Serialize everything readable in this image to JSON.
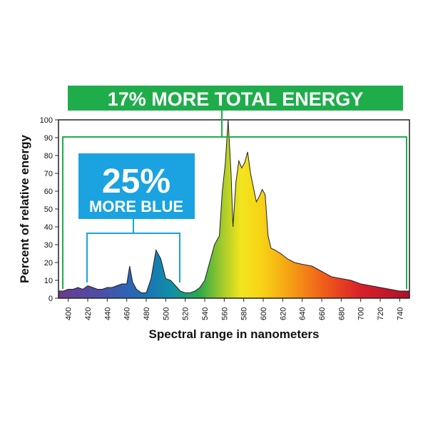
{
  "chart_data": {
    "type": "area",
    "title": "",
    "xlabel": "Spectral range in nanometers",
    "ylabel": "Percent of relative energy",
    "xlim": [
      390,
      750
    ],
    "ylim": [
      0,
      100
    ],
    "x_ticks": [
      "400",
      "420",
      "440",
      "460",
      "480",
      "500",
      "520",
      "540",
      "560",
      "580",
      "600",
      "620",
      "640",
      "660",
      "680",
      "700",
      "720",
      "740"
    ],
    "y_ticks": [
      "0",
      "10",
      "20",
      "30",
      "40",
      "50",
      "60",
      "70",
      "80",
      "90",
      "100"
    ],
    "grid": false,
    "fill": "spectral gradient (violet to red)",
    "series": [
      {
        "x": [
          390,
          395,
          400,
          405,
          410,
          415,
          420,
          425,
          430,
          435,
          440,
          445,
          450,
          455,
          460,
          463,
          466,
          470,
          475,
          480,
          485,
          490,
          495,
          500,
          505,
          510,
          515,
          520,
          525,
          530,
          535,
          540,
          545,
          550,
          555,
          558,
          561,
          564,
          567,
          569,
          572,
          575,
          578,
          581,
          584,
          587,
          590,
          593,
          596,
          599,
          602,
          605,
          608,
          612,
          618,
          625,
          632,
          640,
          650,
          660,
          670,
          680,
          690,
          700,
          710,
          720,
          730,
          740,
          750
        ],
        "y": [
          4,
          4,
          5,
          5,
          6,
          5,
          7,
          6,
          5,
          5,
          6,
          6,
          7,
          8,
          8,
          18,
          9,
          5,
          3,
          3,
          11,
          27,
          22,
          11,
          10,
          7,
          4,
          3,
          3,
          4,
          6,
          10,
          20,
          30,
          35,
          60,
          75,
          100,
          70,
          40,
          65,
          77,
          73,
          76,
          82,
          70,
          62,
          54,
          57,
          61,
          58,
          35,
          28,
          27,
          25,
          22,
          20,
          19,
          18,
          15,
          12,
          11,
          10,
          8,
          7,
          6,
          5,
          4,
          4
        ]
      }
    ],
    "annotations": {
      "total_banner": "17% MORE TOTAL ENERGY",
      "blue_percent": "25%",
      "blue_label": "MORE BLUE"
    },
    "colors": {
      "green_banner": "#1fad4b",
      "blue_banner": "#1aa3e0"
    }
  }
}
